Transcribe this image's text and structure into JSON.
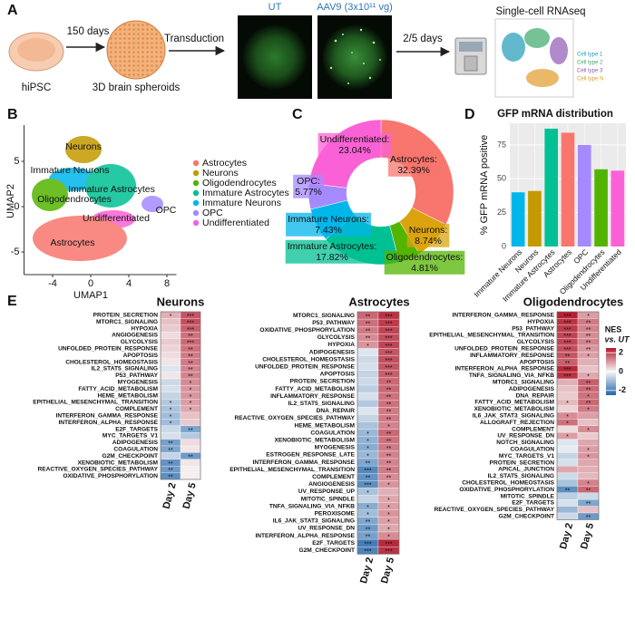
{
  "panel_labels": [
    "A",
    "B",
    "C",
    "D",
    "E"
  ],
  "panel_a": {
    "steps": [
      "hiPSC",
      "150 days",
      "3D brain spheroids",
      "Transduction",
      "2/5 days",
      "Single-cell RNAseq"
    ],
    "conditions": [
      "UT",
      "AAV9 (3x10¹¹ vg)"
    ],
    "tsne_legend": [
      "Cell type 1",
      "Cell type 2",
      "Cell type 3",
      "Cell type N"
    ]
  },
  "chart_data": [
    {
      "type": "umap",
      "xlabel": "UMAP1",
      "ylabel": "UMAP2",
      "xlim": [
        -7,
        9
      ],
      "xticks": [
        -4,
        0,
        4,
        8
      ],
      "ylim": [
        -7.5,
        9
      ],
      "yticks": [
        -5,
        0,
        5
      ],
      "categories": [
        "Astrocytes",
        "Neurons",
        "Oligodendrocytes",
        "Immature Astrocytes",
        "Immature Neurons",
        "OPC",
        "Undifferentiated"
      ],
      "colors": [
        "#f8766d",
        "#c49a00",
        "#53b400",
        "#00c094",
        "#00b6eb",
        "#a58aff",
        "#fb61d7"
      ],
      "cluster_labels": [
        "Neurons",
        "Immature Neurons",
        "Immature Astrocytes",
        "Oligodendrocytes",
        "OPC",
        "Undifferentiated",
        "Astrocytes"
      ]
    },
    {
      "type": "donut",
      "categories": [
        "Astrocytes:",
        "Neurons:",
        "Oligodendrocytes:",
        "Immature Astrocytes:",
        "Immature Neurons:",
        "OPC:",
        "Undifferentiated:"
      ],
      "values": [
        32.39,
        8.74,
        4.81,
        17.82,
        7.43,
        5.77,
        23.04
      ],
      "value_labels": [
        "32.39%",
        "8.74%",
        "4.81%",
        "17.82%",
        "7.43%",
        "5.77%",
        "23.04%"
      ],
      "colors": [
        "#f8766d",
        "#dba40e",
        "#53b400",
        "#00c094",
        "#00b6eb",
        "#a58aff",
        "#fb61d7"
      ]
    },
    {
      "type": "bar",
      "title": "GFP mRNA distribution",
      "ylabel": "% GFP mRNA positive",
      "categories": [
        "Immature Neurons",
        "Neurons",
        "Immature Astrocytes",
        "Astrocytes",
        "OPC",
        "Oligodendrocytes",
        "Undifferentiated"
      ],
      "values": [
        40,
        41,
        87,
        84,
        75,
        57,
        56
      ],
      "colors": [
        "#00b6eb",
        "#c49a00",
        "#00c094",
        "#f8766d",
        "#a58aff",
        "#53b400",
        "#fb61d7"
      ],
      "ylim": [
        0,
        91
      ],
      "yticks": [
        0,
        25,
        50,
        75
      ],
      "grid": true
    },
    {
      "type": "heatmap",
      "title": "Neurons",
      "columns": [
        "Day 2",
        "Day 5"
      ],
      "rows": [
        "PROTEIN_SECRETION",
        "MTORC1_SIGNALING",
        "HYPOXIA",
        "ANGIOGENESIS",
        "GLYCOLYSIS",
        "UNFOLDED_PROTEIN_RESPONSE",
        "APOPTOSIS",
        "CHOLESTEROL_HOMEOSTASIS",
        "IL2_STAT5_SIGNALING",
        "P53_PATHWAY",
        "MYOGENESIS",
        "FATTY_ACID_METABOLISM",
        "HEME_METABOLISM",
        "EPITHELIAL_MESENCHYMAL_TRANSITION",
        "COMPLEMENT",
        "INTERFERON_GAMMA_RESPONSE",
        "INTERFERON_ALPHA_RESPONSE",
        "E2F_TARGETS",
        "MYC_TARGETS_V1",
        "ADIPOGENESIS",
        "COAGULATION",
        "G2M_CHECKPOINT",
        "XENOBIOTIC_METABOLISM",
        "REACTIVE_OXYGEN_SPECIES_PATHWAY",
        "OXIDATIVE_PHOSPHORYLATION"
      ],
      "values": [
        [
          0.8,
          1.8
        ],
        [
          0.6,
          1.9
        ],
        [
          0.5,
          1.7
        ],
        [
          0.3,
          1.5
        ],
        [
          0.5,
          1.6
        ],
        [
          0.4,
          1.5
        ],
        [
          0.3,
          1.4
        ],
        [
          0.2,
          1.4
        ],
        [
          -0.3,
          1.3
        ],
        [
          0.2,
          1.3
        ],
        [
          -0.5,
          1.2
        ],
        [
          -0.4,
          1.1
        ],
        [
          -0.6,
          1.1
        ],
        [
          -0.8,
          1.0
        ],
        [
          -0.9,
          0.9
        ],
        [
          -1.0,
          0.6
        ],
        [
          -1.0,
          0.5
        ],
        [
          -0.5,
          -1.4
        ],
        [
          -0.4,
          -0.8
        ],
        [
          -1.5,
          0.3
        ],
        [
          -1.4,
          0.2
        ],
        [
          -0.6,
          -1.6
        ],
        [
          -1.7,
          0.2
        ],
        [
          -1.6,
          0.1
        ],
        [
          -1.8,
          0.1
        ]
      ],
      "stars": [
        [
          "*",
          "***"
        ],
        [
          null,
          "***"
        ],
        [
          null,
          "***"
        ],
        [
          null,
          "**"
        ],
        [
          null,
          "***"
        ],
        [
          null,
          "**"
        ],
        [
          null,
          "**"
        ],
        [
          null,
          "**"
        ],
        [
          null,
          "**"
        ],
        [
          null,
          "**"
        ],
        [
          null,
          "*"
        ],
        [
          null,
          "*"
        ],
        [
          null,
          "*"
        ],
        [
          "*",
          "*"
        ],
        [
          "*",
          "*"
        ],
        [
          "*",
          null
        ],
        [
          "*",
          null
        ],
        [
          null,
          "**"
        ],
        [
          null,
          null
        ],
        [
          "**",
          null
        ],
        [
          "**",
          null
        ],
        [
          null,
          "**"
        ],
        [
          "**",
          null
        ],
        [
          "**",
          null
        ],
        [
          "**",
          null
        ]
      ]
    },
    {
      "type": "heatmap",
      "title": "Astrocytes",
      "columns": [
        "Day 2",
        "Day 5"
      ],
      "rows": [
        "MTORC1_SIGNALING",
        "P53_PATHWAY",
        "OXIDATIVE_PHOSPHORYLATION",
        "GLYCOLYSIS",
        "HYPOXIA",
        "ADIPOGENESIS",
        "CHOLESTEROL_HOMEOSTASIS",
        "UNFOLDED_PROTEIN_RESPONSE",
        "APOPTOSIS",
        "PROTEIN_SECRETION",
        "FATTY_ACID_METABOLISM",
        "INFLAMMATORY_RESPONSE",
        "IL2_STAT5_SIGNALING",
        "DNA_REPAIR",
        "REACTIVE_OXYGEN_SPECIES_PATHWAY",
        "HEME_METABOLISM",
        "COAGULATION",
        "XENOBIOTIC_METABOLISM",
        "MYOGENESIS",
        "ESTROGEN_RESPONSE_LATE",
        "INTERFERON_GAMMA_RESPONSE",
        "EPITHELIAL_MESENCHYMAL_TRANSITION",
        "COMPLEMENT",
        "ANGIOGENESIS",
        "UV_RESPONSE_UP",
        "MITOTIC_SPINDLE",
        "TNFA_SIGNALING_VIA_NFKB",
        "PEROXISOME",
        "IL6_JAK_STAT3_SIGNALING",
        "UV_RESPONSE_DN",
        "INTERFERON_ALPHA_RESPONSE",
        "E2F_TARGETS",
        "G2M_CHECKPOINT"
      ],
      "values": [
        [
          1.6,
          2.2
        ],
        [
          1.5,
          2.1
        ],
        [
          1.4,
          2.0
        ],
        [
          1.2,
          1.9
        ],
        [
          1.1,
          2.0
        ],
        [
          -0.3,
          1.8
        ],
        [
          -0.5,
          1.9
        ],
        [
          -0.4,
          1.8
        ],
        [
          -0.6,
          1.7
        ],
        [
          -0.5,
          1.6
        ],
        [
          -0.7,
          1.6
        ],
        [
          -0.4,
          1.5
        ],
        [
          -0.8,
          1.5
        ],
        [
          -0.3,
          1.4
        ],
        [
          -0.6,
          1.4
        ],
        [
          -0.9,
          1.3
        ],
        [
          -1.1,
          1.6
        ],
        [
          -1.2,
          1.5
        ],
        [
          -1.3,
          1.4
        ],
        [
          -1.1,
          1.3
        ],
        [
          -1.4,
          1.3
        ],
        [
          -1.9,
          1.4
        ],
        [
          -1.7,
          1.2
        ],
        [
          -1.8,
          1.1
        ],
        [
          -0.9,
          0.8
        ],
        [
          -0.6,
          0.9
        ],
        [
          -1.3,
          1.0
        ],
        [
          -1.0,
          1.1
        ],
        [
          -1.4,
          1.0
        ],
        [
          -1.6,
          0.9
        ],
        [
          -1.5,
          1.2
        ],
        [
          -2.1,
          2.3
        ],
        [
          -2.0,
          2.2
        ]
      ],
      "stars": [
        [
          "**",
          "***"
        ],
        [
          "**",
          "***"
        ],
        [
          "**",
          "***"
        ],
        [
          "**",
          "***"
        ],
        [
          "*",
          "***"
        ],
        [
          null,
          "***"
        ],
        [
          null,
          "***"
        ],
        [
          null,
          "***"
        ],
        [
          null,
          "***"
        ],
        [
          null,
          "**"
        ],
        [
          null,
          "**"
        ],
        [
          null,
          "**"
        ],
        [
          null,
          "**"
        ],
        [
          null,
          "**"
        ],
        [
          null,
          "**"
        ],
        [
          null,
          "*"
        ],
        [
          "*",
          "**"
        ],
        [
          "*",
          "**"
        ],
        [
          "*",
          "**"
        ],
        [
          "*",
          "**"
        ],
        [
          "**",
          "**"
        ],
        [
          "***",
          "**"
        ],
        [
          "**",
          "**"
        ],
        [
          "***",
          "*"
        ],
        [
          "*",
          null
        ],
        [
          null,
          "*"
        ],
        [
          "*",
          "*"
        ],
        [
          "*",
          "*"
        ],
        [
          "**",
          "*"
        ],
        [
          "**",
          "*"
        ],
        [
          "**",
          "*"
        ],
        [
          "***",
          "***"
        ],
        [
          "***",
          "***"
        ]
      ]
    },
    {
      "type": "heatmap",
      "title": "Oligodendrocytes",
      "columns": [
        "Day 2",
        "Day 5"
      ],
      "rows": [
        "INTERFERON_GAMMA_RESPONSE",
        "HYPOXIA",
        "P53_PATHWAY",
        "EPITHELIAL_MESENCHYMAL_TRANSITION",
        "GLYCOLYSIS",
        "UNFOLDED_PROTEIN_RESPONSE",
        "INFLAMMATORY_RESPONSE",
        "APOPTOSIS",
        "INTERFERON_ALPHA_RESPONSE",
        "TNFA_SIGNALING_VIA_NFKB",
        "MTORC1_SIGNALING",
        "ADIPOGENESIS",
        "DNA_REPAIR",
        "FATTY_ACID_METABOLISM",
        "XENOBIOTIC_METABOLISM",
        "IL6_JAK_STAT3_SIGNALING",
        "ALLOGRAFT_REJECTION",
        "COMPLEMENT",
        "UV_RESPONSE_DN",
        "NOTCH_SIGNALING",
        "COAGULATION",
        "MYC_TARGETS_V1",
        "PROTEIN_SECRETION",
        "APICAL_JUNCTION",
        "IL2_STAT5_SIGNALING",
        "CHOLESTEROL_HOMEOSTASIS",
        "OXIDATIVE_PHOSPHORYLATION",
        "MITOTIC_SPINDLE",
        "E2F_TARGETS",
        "REACTIVE_OXYGEN_SPECIES_PATHWAY",
        "G2M_CHECKPOINT"
      ],
      "values": [
        [
          2.4,
          1.0
        ],
        [
          2.2,
          1.4
        ],
        [
          2.1,
          1.3
        ],
        [
          2.0,
          1.2
        ],
        [
          2.0,
          1.3
        ],
        [
          1.9,
          1.1
        ],
        [
          1.8,
          1.0
        ],
        [
          1.7,
          0.8
        ],
        [
          2.3,
          0.6
        ],
        [
          2.2,
          0.9
        ],
        [
          0.8,
          1.7
        ],
        [
          0.6,
          1.6
        ],
        [
          0.5,
          1.5
        ],
        [
          0.7,
          1.6
        ],
        [
          0.4,
          1.4
        ],
        [
          1.2,
          1.0
        ],
        [
          1.5,
          0.6
        ],
        [
          0.3,
          1.2
        ],
        [
          1.0,
          0.5
        ],
        [
          -0.3,
          0.9
        ],
        [
          -0.2,
          1.0
        ],
        [
          -0.6,
          1.1
        ],
        [
          -0.4,
          0.9
        ],
        [
          0.9,
          0.8
        ],
        [
          -0.5,
          0.7
        ],
        [
          -0.9,
          1.3
        ],
        [
          -1.8,
          1.6
        ],
        [
          -0.7,
          -0.5
        ],
        [
          -0.4,
          -1.4
        ],
        [
          -1.1,
          0.6
        ],
        [
          -0.5,
          -1.6
        ]
      ],
      "stars": [
        [
          "***",
          "*"
        ],
        [
          "***",
          "**"
        ],
        [
          "***",
          "**"
        ],
        [
          "***",
          "**"
        ],
        [
          "***",
          "**"
        ],
        [
          "***",
          "**"
        ],
        [
          "**",
          "*"
        ],
        [
          "**",
          null
        ],
        [
          "***",
          null
        ],
        [
          "***",
          "*"
        ],
        [
          null,
          "**"
        ],
        [
          null,
          "**"
        ],
        [
          null,
          "*"
        ],
        [
          "*",
          "**"
        ],
        [
          null,
          "*"
        ],
        [
          "*",
          null
        ],
        [
          "*",
          null
        ],
        [
          null,
          "*"
        ],
        [
          "*",
          null
        ],
        [
          null,
          null
        ],
        [
          null,
          "*"
        ],
        [
          null,
          "*"
        ],
        [
          null,
          null
        ],
        [
          null,
          null
        ],
        [
          null,
          null
        ],
        [
          null,
          "*"
        ],
        [
          "**",
          "**"
        ],
        [
          null,
          null
        ],
        [
          null,
          "**"
        ],
        [
          null,
          null
        ],
        [
          null,
          "**"
        ]
      ],
      "colorbar": {
        "title": "NES",
        "subtitle": "vs. UT",
        "lim": [
          -2.5,
          2.5
        ],
        "ticks": [
          2,
          0,
          -2
        ]
      }
    }
  ]
}
